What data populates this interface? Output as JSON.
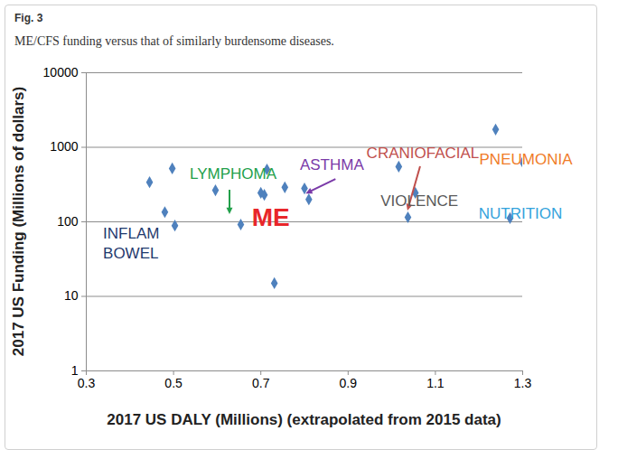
{
  "chart_data": {
    "type": "scatter",
    "title": "Fig. 3",
    "subtitle": "ME/CFS funding versus that of similarly burdensome diseases.",
    "x_label": "2017 US DALY (Millions) (extrapolated from 2015 data)",
    "y_label": "2017 US Funding (Millions of dollars)",
    "x": [
      0.445,
      0.497,
      0.48,
      0.503,
      0.596,
      0.654,
      0.7,
      0.708,
      0.714,
      0.731,
      0.755,
      0.8,
      0.81,
      1.016,
      1.037,
      1.054,
      1.238,
      1.271,
      1.3
    ],
    "values": [
      340,
      520,
      135,
      89,
      265,
      92,
      245,
      230,
      505,
      15,
      290,
      280,
      200,
      550,
      115,
      245,
      1730,
      112,
      630
    ],
    "labels": [
      null,
      null,
      null,
      "INFLAM\nBOWEL",
      null,
      "LYMPHOMA",
      null,
      null,
      null,
      null,
      "ME",
      null,
      "ASTHMA",
      null,
      "CRANIOFACIAL",
      "VIOLENCE",
      null,
      "NUTRITION",
      "PNEUMONIA"
    ],
    "label_colors": [
      null,
      null,
      null,
      "#1f3a6e",
      null,
      "#22a04a",
      null,
      null,
      null,
      null,
      "#e8262a",
      null,
      "#7a3aa8",
      null,
      "#c0504d",
      "#595959",
      null,
      "#33a3dc",
      "#f07c28"
    ],
    "color": "#4f81bd",
    "marker": "diamond",
    "log": "y",
    "grid": true,
    "xlim": [
      0.3,
      1.3
    ],
    "xticks": [
      0.3,
      0.5,
      0.7,
      0.9,
      1.1,
      1.3
    ],
    "ylim": [
      1,
      10000
    ],
    "yticks": [
      1,
      10,
      100,
      1000,
      10000
    ]
  }
}
